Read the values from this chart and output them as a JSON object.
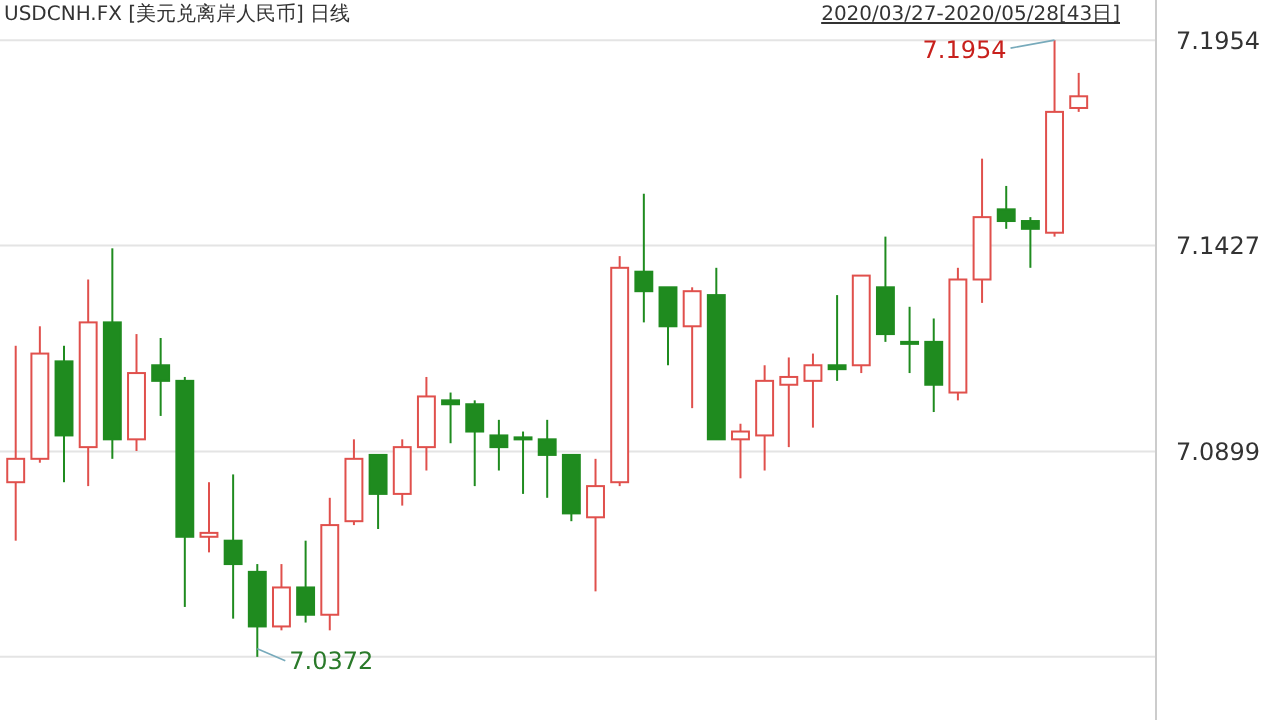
{
  "chart_data": {
    "type": "candlestick",
    "title": "USDCNH.FX [美元兑离岸人民币] 日线",
    "subtitle": "2020/03/27-2020/05/28[43日]",
    "categories": [
      null,
      null,
      null,
      null,
      null,
      null,
      null,
      null,
      null,
      null,
      null,
      null,
      null,
      null,
      null,
      null,
      null,
      null,
      null,
      null,
      null,
      null,
      null,
      null,
      null,
      null,
      null,
      null,
      null,
      null,
      null,
      null,
      null,
      null,
      null,
      null,
      null,
      null,
      null,
      null,
      null,
      null,
      null,
      null,
      null
    ],
    "ohlc": [
      [
        7.082,
        7.117,
        7.067,
        7.088
      ],
      [
        7.088,
        7.122,
        7.087,
        7.115
      ],
      [
        7.113,
        7.117,
        7.082,
        7.094
      ],
      [
        7.091,
        7.134,
        7.081,
        7.123
      ],
      [
        7.123,
        7.142,
        7.088,
        7.093
      ],
      [
        7.093,
        7.12,
        7.09,
        7.11
      ],
      [
        7.112,
        7.119,
        7.099,
        7.108
      ],
      [
        7.108,
        7.109,
        7.05,
        7.068
      ],
      [
        7.068,
        7.082,
        7.064,
        7.069
      ],
      [
        7.067,
        7.084,
        7.047,
        7.061
      ],
      [
        7.059,
        7.061,
        7.0372,
        7.045
      ],
      [
        7.045,
        7.061,
        7.044,
        7.055
      ],
      [
        7.055,
        7.067,
        7.046,
        7.048
      ],
      [
        7.048,
        7.078,
        7.044,
        7.071
      ],
      [
        7.072,
        7.093,
        7.071,
        7.088
      ],
      [
        7.089,
        7.089,
        7.07,
        7.079
      ],
      [
        7.079,
        7.093,
        7.076,
        7.091
      ],
      [
        7.091,
        7.109,
        7.085,
        7.104
      ],
      [
        7.103,
        7.105,
        7.092,
        7.102
      ],
      [
        7.102,
        7.103,
        7.081,
        7.095
      ],
      [
        7.094,
        7.098,
        7.085,
        7.091
      ],
      [
        7.0935,
        7.095,
        7.079,
        7.0933
      ],
      [
        7.093,
        7.098,
        7.078,
        7.089
      ],
      [
        7.089,
        7.089,
        7.072,
        7.074
      ],
      [
        7.073,
        7.088,
        7.054,
        7.081
      ],
      [
        7.082,
        7.14,
        7.081,
        7.137
      ],
      [
        7.136,
        7.156,
        7.123,
        7.131
      ],
      [
        7.132,
        7.132,
        7.112,
        7.122
      ],
      [
        7.122,
        7.132,
        7.101,
        7.131
      ],
      [
        7.13,
        7.137,
        7.093,
        7.093
      ],
      [
        7.093,
        7.097,
        7.083,
        7.095
      ],
      [
        7.094,
        7.112,
        7.085,
        7.108
      ],
      [
        7.107,
        7.114,
        7.091,
        7.109
      ],
      [
        7.108,
        7.115,
        7.096,
        7.112
      ],
      [
        7.112,
        7.13,
        7.108,
        7.111
      ],
      [
        7.112,
        7.135,
        7.11,
        7.135
      ],
      [
        7.132,
        7.145,
        7.118,
        7.12
      ],
      [
        7.118,
        7.127,
        7.11,
        7.1178
      ],
      [
        7.118,
        7.124,
        7.1,
        7.107
      ],
      [
        7.105,
        7.137,
        7.103,
        7.134
      ],
      [
        7.134,
        7.165,
        7.128,
        7.15
      ],
      [
        7.152,
        7.158,
        7.147,
        7.149
      ],
      [
        7.149,
        7.15,
        7.137,
        7.147
      ],
      [
        7.146,
        7.1954,
        7.145,
        7.177
      ],
      [
        7.178,
        7.187,
        7.177,
        7.181
      ]
    ],
    "ylim": [
      7.021,
      7.2057
    ],
    "yticks": [
      7.1954,
      7.1427,
      7.0899,
      {
        "value": 7.0372,
        "label": null
      }
    ],
    "grid": "y",
    "annotations": [
      "7.1954",
      "7.0372"
    ]
  }
}
